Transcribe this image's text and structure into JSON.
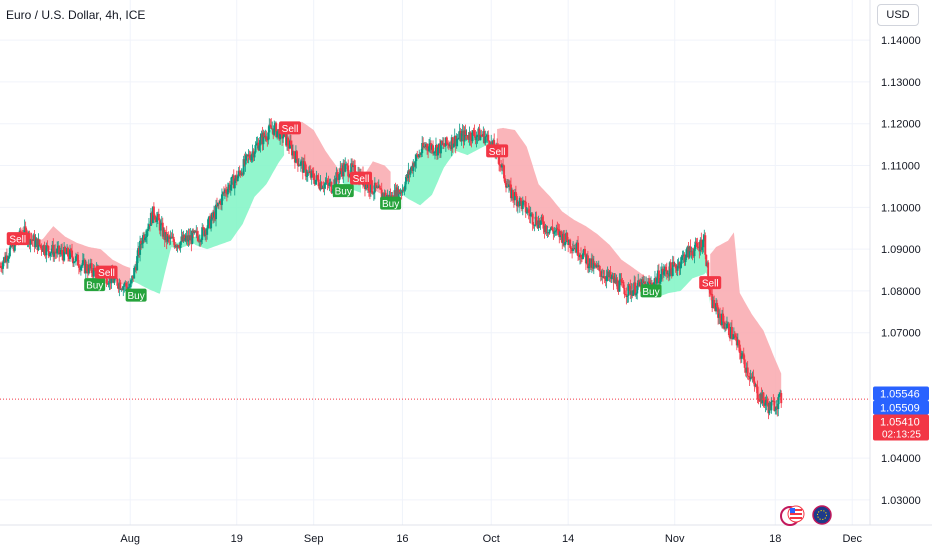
{
  "header": {
    "symbol_title": "Euro / U.S. Dollar, 4h, ICE",
    "currency_button": "USD"
  },
  "chart_data": {
    "type": "candlestick",
    "title": "Euro / U.S. Dollar, 4h, ICE",
    "y_axis": {
      "ticks": [
        "1.14000",
        "1.13000",
        "1.12000",
        "1.11000",
        "1.10000",
        "1.09000",
        "1.08000",
        "1.07000",
        "1.04000",
        "1.03000"
      ],
      "tick_values": [
        1.14,
        1.13,
        1.12,
        1.11,
        1.1,
        1.09,
        1.08,
        1.07,
        1.04,
        1.03
      ],
      "range": [
        1.024,
        1.1496
      ]
    },
    "x_axis": {
      "ticks": [
        "Aug",
        "19",
        "Sep",
        "16",
        "Oct",
        "14",
        "Nov",
        "18",
        "Dec"
      ],
      "tick_dates": [
        "2024-08-01",
        "2024-08-19",
        "2024-09-01",
        "2024-09-16",
        "2024-10-01",
        "2024-10-14",
        "2024-11-01",
        "2024-11-18",
        "2024-12-01"
      ],
      "range": [
        "2024-07-10",
        "2024-12-04"
      ]
    },
    "price_labels": [
      {
        "value": 1.05546,
        "text": "1.05546",
        "color": "#2962ff"
      },
      {
        "value": 1.05509,
        "text": "1.05509",
        "color": "#2962ff"
      },
      {
        "value": 1.0541,
        "text": "1.05410",
        "color": "#f23645",
        "countdown": "02:13:25"
      }
    ],
    "last_price_line": 1.0541,
    "price_path": [
      [
        "2024-07-10",
        1.086
      ],
      [
        "2024-07-12",
        1.0905
      ],
      [
        "2024-07-14",
        1.094
      ],
      [
        "2024-07-16",
        1.0915
      ],
      [
        "2024-07-18",
        1.09
      ],
      [
        "2024-07-20",
        1.089
      ],
      [
        "2024-07-22",
        1.0885
      ],
      [
        "2024-07-24",
        1.086
      ],
      [
        "2024-07-26",
        1.0845
      ],
      [
        "2024-07-28",
        1.0835
      ],
      [
        "2024-07-30",
        1.082
      ],
      [
        "2024-08-01",
        1.0808
      ],
      [
        "2024-08-03",
        1.0925
      ],
      [
        "2024-08-05",
        1.099
      ],
      [
        "2024-08-07",
        1.0925
      ],
      [
        "2024-08-09",
        1.0915
      ],
      [
        "2024-08-11",
        1.0925
      ],
      [
        "2024-08-13",
        1.0935
      ],
      [
        "2024-08-15",
        1.0975
      ],
      [
        "2024-08-17",
        1.104
      ],
      [
        "2024-08-19",
        1.107
      ],
      [
        "2024-08-21",
        1.112
      ],
      [
        "2024-08-23",
        1.116
      ],
      [
        "2024-08-25",
        1.119
      ],
      [
        "2024-08-27",
        1.117
      ],
      [
        "2024-08-29",
        1.112
      ],
      [
        "2024-08-31",
        1.108
      ],
      [
        "2024-09-02",
        1.106
      ],
      [
        "2024-09-04",
        1.105
      ],
      [
        "2024-09-06",
        1.1095
      ],
      [
        "2024-09-08",
        1.1085
      ],
      [
        "2024-09-10",
        1.1055
      ],
      [
        "2024-09-12",
        1.1035
      ],
      [
        "2024-09-14",
        1.102
      ],
      [
        "2024-09-16",
        1.1045
      ],
      [
        "2024-09-18",
        1.111
      ],
      [
        "2024-09-20",
        1.115
      ],
      [
        "2024-09-22",
        1.114
      ],
      [
        "2024-09-24",
        1.1155
      ],
      [
        "2024-09-26",
        1.117
      ],
      [
        "2024-09-28",
        1.1175
      ],
      [
        "2024-09-30",
        1.117
      ],
      [
        "2024-10-02",
        1.113
      ],
      [
        "2024-10-04",
        1.104
      ],
      [
        "2024-10-06",
        1.101
      ],
      [
        "2024-10-08",
        1.0975
      ],
      [
        "2024-10-10",
        1.0955
      ],
      [
        "2024-10-12",
        1.094
      ],
      [
        "2024-10-14",
        1.092
      ],
      [
        "2024-10-16",
        1.0895
      ],
      [
        "2024-10-18",
        1.086
      ],
      [
        "2024-10-20",
        1.084
      ],
      [
        "2024-10-22",
        1.082
      ],
      [
        "2024-10-24",
        1.08
      ],
      [
        "2024-10-26",
        1.081
      ],
      [
        "2024-10-28",
        1.0815
      ],
      [
        "2024-10-30",
        1.0845
      ],
      [
        "2024-11-01",
        1.0855
      ],
      [
        "2024-11-03",
        1.089
      ],
      [
        "2024-11-05",
        1.0905
      ],
      [
        "2024-11-06",
        1.0925
      ],
      [
        "2024-11-07",
        1.078
      ],
      [
        "2024-11-09",
        1.073
      ],
      [
        "2024-11-11",
        1.069
      ],
      [
        "2024-11-13",
        1.062
      ],
      [
        "2024-11-15",
        1.0555
      ],
      [
        "2024-11-17",
        1.052
      ],
      [
        "2024-11-19",
        1.0541
      ]
    ],
    "trend_bands": [
      {
        "direction": "down",
        "color": "#f9a8ae",
        "start": "2024-07-12",
        "end": "2024-08-01"
      },
      {
        "direction": "up",
        "color": "#7ff5c4",
        "start": "2024-08-01",
        "end": "2024-08-27"
      },
      {
        "direction": "down",
        "color": "#f9a8ae",
        "start": "2024-08-27",
        "end": "2024-09-06"
      },
      {
        "direction": "up",
        "color": "#7ff5c4",
        "start": "2024-09-06",
        "end": "2024-09-09"
      },
      {
        "direction": "down",
        "color": "#f9a8ae",
        "start": "2024-09-09",
        "end": "2024-09-14"
      },
      {
        "direction": "up",
        "color": "#7ff5c4",
        "start": "2024-09-14",
        "end": "2024-10-02"
      },
      {
        "direction": "down",
        "color": "#f9a8ae",
        "start": "2024-10-02",
        "end": "2024-10-28"
      },
      {
        "direction": "up",
        "color": "#7ff5c4",
        "start": "2024-10-28",
        "end": "2024-11-07"
      },
      {
        "direction": "down",
        "color": "#f9a8ae",
        "start": "2024-11-07",
        "end": "2024-11-19"
      }
    ],
    "signals": [
      {
        "type": "Sell",
        "date": "2024-07-13",
        "price": 1.0925
      },
      {
        "type": "Buy",
        "date": "2024-07-26",
        "price": 1.0815
      },
      {
        "type": "Sell",
        "date": "2024-07-28",
        "price": 1.0845
      },
      {
        "type": "Buy",
        "date": "2024-08-02",
        "price": 1.079
      },
      {
        "type": "Sell",
        "date": "2024-08-28",
        "price": 1.119
      },
      {
        "type": "Buy",
        "date": "2024-09-06",
        "price": 1.104
      },
      {
        "type": "Sell",
        "date": "2024-09-09",
        "price": 1.107
      },
      {
        "type": "Buy",
        "date": "2024-09-14",
        "price": 1.101
      },
      {
        "type": "Sell",
        "date": "2024-10-02",
        "price": 1.1135
      },
      {
        "type": "Buy",
        "date": "2024-10-28",
        "price": 1.08
      },
      {
        "type": "Sell",
        "date": "2024-11-07",
        "price": 1.082
      }
    ],
    "up_color": "#089981",
    "down_color": "#f23645",
    "grid": true
  }
}
